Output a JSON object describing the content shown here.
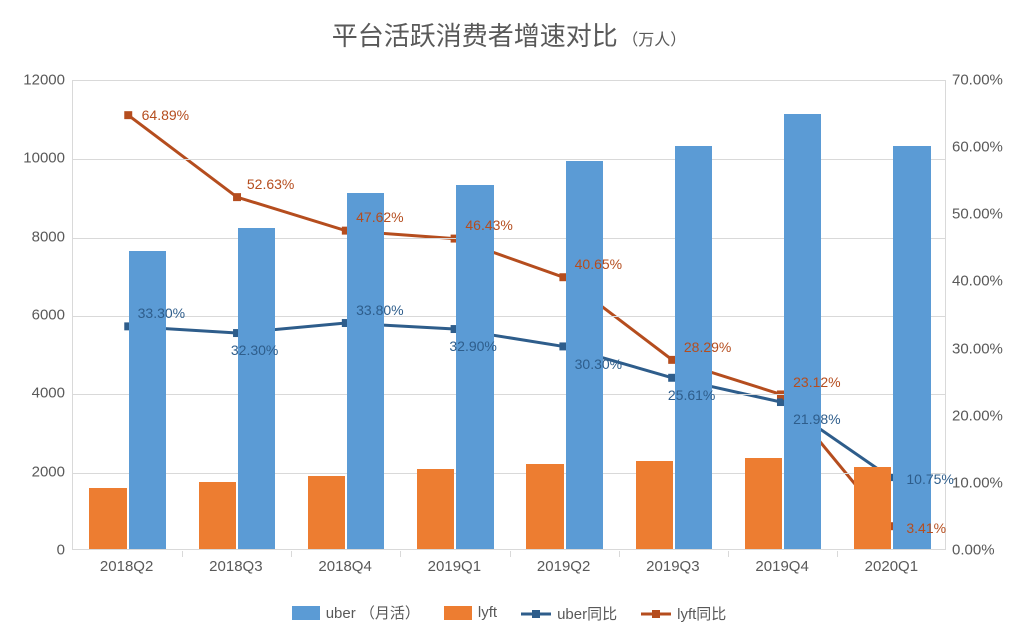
{
  "chart": {
    "title_main": "平台活跃消费者增速对比",
    "title_sub": "（万人）",
    "title_color": "#595959",
    "title_fontsize_main": 26,
    "title_fontsize_sub": 16,
    "background_color": "#ffffff",
    "grid_color": "#d9d9d9",
    "axis_font_color": "#595959",
    "axis_fontsize": 15,
    "label_fontsize": 14,
    "categories": [
      "2018Q2",
      "2018Q3",
      "2018Q4",
      "2019Q1",
      "2019Q2",
      "2019Q3",
      "2019Q4",
      "2020Q1"
    ],
    "y_left": {
      "min": 0,
      "max": 12000,
      "step": 2000
    },
    "y_right": {
      "min": 0,
      "max": 0.7,
      "step": 0.1,
      "format": "pct2"
    },
    "series": {
      "uber_mau": {
        "type": "bar",
        "legend": "uber （月活）",
        "color": "#5b9bd5",
        "values": [
          7600,
          8200,
          9100,
          9300,
          9900,
          10300,
          11100,
          10300
        ],
        "bar_width": 0.34,
        "bar_offset": 0.18,
        "axis": "left"
      },
      "lyft": {
        "type": "bar",
        "legend": "lyft",
        "color": "#ed7d31",
        "values": [
          1550,
          1720,
          1860,
          2050,
          2180,
          2250,
          2320,
          2100
        ],
        "bar_width": 0.34,
        "bar_offset": -0.18,
        "axis": "left"
      },
      "uber_yoy": {
        "type": "line",
        "legend": "uber同比",
        "color": "#2e5d8b",
        "values": [
          0.333,
          0.323,
          0.338,
          0.329,
          0.303,
          0.2561,
          0.2198,
          0.1075
        ],
        "labels": [
          "33.30%",
          "32.30%",
          "33.80%",
          "32.90%",
          "30.30%",
          "25.61%",
          "21.98%",
          "10.75%"
        ],
        "label_positions": [
          "above-right",
          "below",
          "above-right",
          "below",
          "below-right",
          "below",
          "below-right",
          "right"
        ],
        "line_width": 3,
        "marker": "square",
        "marker_size": 8,
        "axis": "right"
      },
      "lyft_yoy": {
        "type": "line",
        "legend": "lyft同比",
        "color": "#b54d1e",
        "values": [
          0.6489,
          0.5263,
          0.4762,
          0.4643,
          0.4065,
          0.2829,
          0.2312,
          0.0341
        ],
        "labels": [
          "64.89%",
          "52.63%",
          "47.62%",
          "46.43%",
          "40.65%",
          "28.29%",
          "23.12%",
          "3.41%"
        ],
        "label_positions": [
          "right",
          "above-right",
          "above-right",
          "above-right",
          "above-right",
          "above-right",
          "above-right",
          "right"
        ],
        "line_width": 3,
        "marker": "square",
        "marker_size": 8,
        "axis": "right"
      }
    },
    "legend_order": [
      "uber_mau",
      "lyft",
      "uber_yoy",
      "lyft_yoy"
    ]
  }
}
